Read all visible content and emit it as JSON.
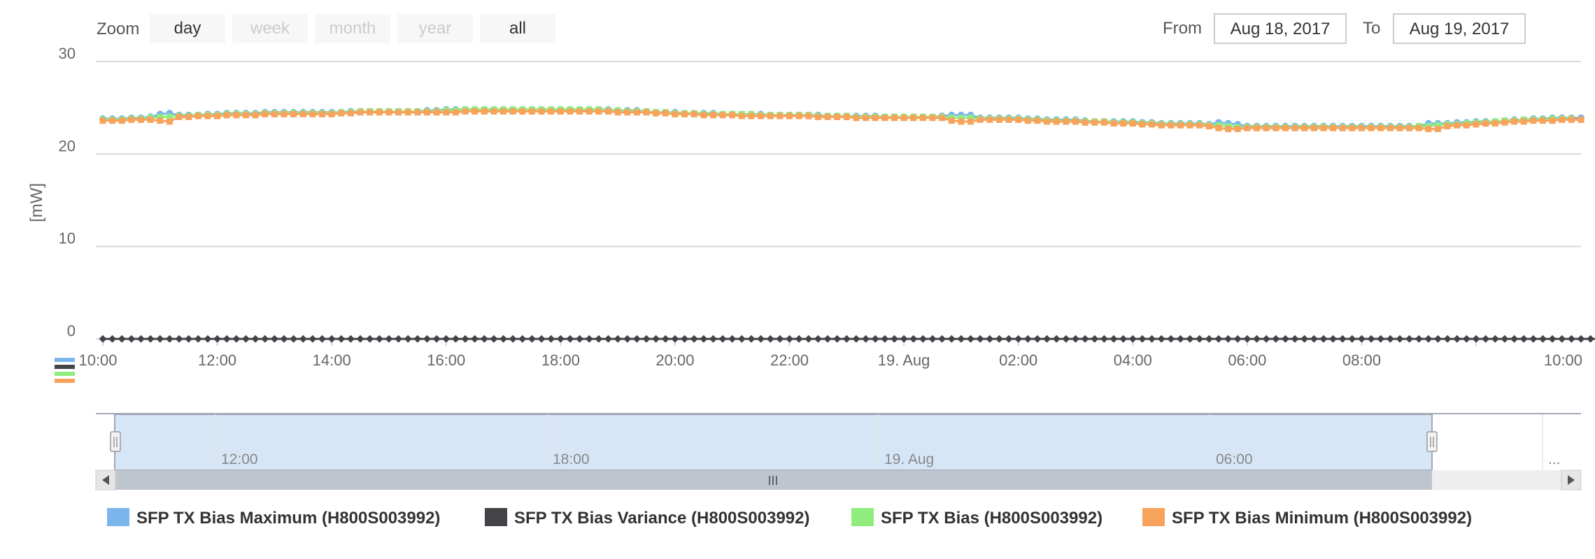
{
  "range_selector": {
    "zoom_label": "Zoom",
    "buttons": [
      {
        "label": "day",
        "state": "normal"
      },
      {
        "label": "week",
        "state": "disabled"
      },
      {
        "label": "month",
        "state": "disabled"
      },
      {
        "label": "year",
        "state": "disabled"
      },
      {
        "label": "all",
        "state": "normal"
      }
    ],
    "from_label": "From",
    "from_value": "Aug 18, 2017",
    "to_label": "To",
    "to_value": "Aug 19, 2017"
  },
  "navigator": {
    "labels": [
      "12:00",
      "18:00",
      "19. Aug",
      "06:00",
      "..."
    ],
    "selected_fraction": [
      0.0,
      0.88
    ],
    "scrollbar_grip": "III"
  },
  "colors": {
    "max": "#7cb5ec",
    "variance": "#434348",
    "bias": "#90ed7d",
    "min": "#f7a35c",
    "navigator_fill": "#d6e6f7",
    "scrollbar": "#bfc5cf"
  },
  "chart_data": {
    "type": "line",
    "title": "",
    "xlabel": "",
    "ylabel": "[mW]",
    "ylim": [
      0,
      30
    ],
    "yticks": [
      "0",
      "10",
      "20",
      "30"
    ],
    "xticks": [
      "10:00",
      "12:00",
      "14:00",
      "16:00",
      "18:00",
      "20:00",
      "22:00",
      "19. Aug",
      "02:00",
      "04:00",
      "06:00",
      "08:00",
      "10:00"
    ],
    "x_start": "2017-08-18 10:00",
    "x_step_minutes": 10,
    "grid": true,
    "legend_position": "bottom",
    "series": [
      {
        "name": "SFP TX Bias Maximum (H800S003992)",
        "marker": "circle",
        "values": [
          23.8,
          23.8,
          23.8,
          23.9,
          23.9,
          24.0,
          24.3,
          24.4,
          24.2,
          24.2,
          24.2,
          24.3,
          24.3,
          24.4,
          24.4,
          24.4,
          24.4,
          24.5,
          24.5,
          24.5,
          24.5,
          24.5,
          24.5,
          24.5,
          24.5,
          24.5,
          24.6,
          24.6,
          24.6,
          24.6,
          24.6,
          24.6,
          24.6,
          24.6,
          24.7,
          24.7,
          24.8,
          24.8,
          24.8,
          24.8,
          24.8,
          24.8,
          24.8,
          24.8,
          24.8,
          24.8,
          24.8,
          24.8,
          24.8,
          24.8,
          24.8,
          24.8,
          24.8,
          24.8,
          24.7,
          24.7,
          24.7,
          24.6,
          24.5,
          24.5,
          24.5,
          24.4,
          24.4,
          24.4,
          24.4,
          24.3,
          24.3,
          24.3,
          24.3,
          24.3,
          24.2,
          24.2,
          24.2,
          24.2,
          24.2,
          24.2,
          24.1,
          24.1,
          24.1,
          24.1,
          24.1,
          24.1,
          24.0,
          24.0,
          24.0,
          24.0,
          24.0,
          24.0,
          24.1,
          24.2,
          24.2,
          24.2,
          23.9,
          23.9,
          23.9,
          23.9,
          23.9,
          23.8,
          23.8,
          23.7,
          23.7,
          23.7,
          23.7,
          23.6,
          23.5,
          23.5,
          23.5,
          23.5,
          23.5,
          23.4,
          23.4,
          23.3,
          23.3,
          23.3,
          23.3,
          23.3,
          23.2,
          23.4,
          23.3,
          23.2,
          23.0,
          23.0,
          23.0,
          23.0,
          23.0,
          23.0,
          23.0,
          23.0,
          23.0,
          23.0,
          23.0,
          23.0,
          23.0,
          23.0,
          23.0,
          23.0,
          23.0,
          23.0,
          23.0,
          23.3,
          23.3,
          23.3,
          23.4,
          23.4,
          23.5,
          23.5,
          23.5,
          23.6,
          23.7,
          23.7,
          23.8,
          23.8,
          23.9,
          23.9,
          23.9,
          23.9
        ]
      },
      {
        "name": "SFP TX Bias Variance (H800S003992)",
        "marker": "diamond",
        "values": [
          0,
          0,
          0,
          0,
          0,
          0,
          0,
          0,
          0,
          0,
          0,
          0,
          0,
          0,
          0,
          0,
          0,
          0,
          0,
          0,
          0,
          0,
          0,
          0,
          0,
          0,
          0,
          0,
          0,
          0,
          0,
          0,
          0,
          0,
          0,
          0,
          0,
          0,
          0,
          0,
          0,
          0,
          0,
          0,
          0,
          0,
          0,
          0,
          0,
          0,
          0,
          0,
          0,
          0,
          0,
          0,
          0,
          0,
          0,
          0,
          0,
          0,
          0,
          0,
          0,
          0,
          0,
          0,
          0,
          0,
          0,
          0,
          0,
          0,
          0,
          0,
          0,
          0,
          0,
          0,
          0,
          0,
          0,
          0,
          0,
          0,
          0,
          0,
          0,
          0,
          0,
          0,
          0,
          0,
          0,
          0,
          0,
          0,
          0,
          0,
          0,
          0,
          0,
          0,
          0,
          0,
          0,
          0,
          0,
          0,
          0,
          0,
          0,
          0,
          0,
          0,
          0,
          0,
          0,
          0,
          0,
          0,
          0,
          0,
          0,
          0,
          0,
          0,
          0,
          0,
          0,
          0,
          0,
          0,
          0,
          0,
          0,
          0,
          0,
          0,
          0,
          0,
          0,
          0,
          0,
          0,
          0,
          0,
          0,
          0,
          0,
          0,
          0,
          0,
          0,
          0,
          0,
          0
        ]
      },
      {
        "name": "SFP TX Bias (H800S003992)",
        "marker": "square",
        "values": [
          23.7,
          23.7,
          23.7,
          23.8,
          23.8,
          23.9,
          24.0,
          24.0,
          24.1,
          24.1,
          24.2,
          24.2,
          24.2,
          24.3,
          24.3,
          24.3,
          24.3,
          24.4,
          24.4,
          24.4,
          24.4,
          24.4,
          24.4,
          24.4,
          24.4,
          24.5,
          24.5,
          24.6,
          24.6,
          24.6,
          24.6,
          24.6,
          24.6,
          24.6,
          24.6,
          24.6,
          24.7,
          24.7,
          24.8,
          24.8,
          24.8,
          24.8,
          24.8,
          24.8,
          24.8,
          24.8,
          24.8,
          24.8,
          24.8,
          24.8,
          24.8,
          24.8,
          24.8,
          24.7,
          24.7,
          24.6,
          24.6,
          24.6,
          24.5,
          24.5,
          24.4,
          24.4,
          24.4,
          24.3,
          24.3,
          24.3,
          24.3,
          24.3,
          24.3,
          24.2,
          24.2,
          24.2,
          24.2,
          24.2,
          24.2,
          24.1,
          24.1,
          24.1,
          24.1,
          24.0,
          24.0,
          24.0,
          24.0,
          24.0,
          24.0,
          24.0,
          24.0,
          24.0,
          24.0,
          23.9,
          23.9,
          23.9,
          23.8,
          23.8,
          23.8,
          23.8,
          23.8,
          23.7,
          23.7,
          23.6,
          23.6,
          23.6,
          23.6,
          23.5,
          23.5,
          23.5,
          23.4,
          23.4,
          23.4,
          23.3,
          23.3,
          23.2,
          23.2,
          23.2,
          23.2,
          23.2,
          23.1,
          23.1,
          23.0,
          22.9,
          22.9,
          22.9,
          22.9,
          22.9,
          22.9,
          22.9,
          22.9,
          22.9,
          22.9,
          22.9,
          22.9,
          22.9,
          22.9,
          22.9,
          22.9,
          22.9,
          22.9,
          22.9,
          23.0,
          23.0,
          23.1,
          23.2,
          23.2,
          23.3,
          23.4,
          23.4,
          23.5,
          23.6,
          23.6,
          23.7,
          23.7,
          23.7,
          23.8,
          23.8,
          23.8
        ]
      },
      {
        "name": "SFP TX Bias Minimum (H800S003992)",
        "marker": "square",
        "values": [
          23.6,
          23.6,
          23.6,
          23.7,
          23.7,
          23.7,
          23.6,
          23.5,
          24.0,
          24.0,
          24.1,
          24.1,
          24.1,
          24.2,
          24.2,
          24.2,
          24.2,
          24.3,
          24.3,
          24.3,
          24.3,
          24.3,
          24.3,
          24.3,
          24.3,
          24.4,
          24.4,
          24.5,
          24.5,
          24.5,
          24.5,
          24.5,
          24.5,
          24.5,
          24.5,
          24.5,
          24.5,
          24.5,
          24.6,
          24.6,
          24.6,
          24.6,
          24.6,
          24.6,
          24.6,
          24.6,
          24.6,
          24.6,
          24.6,
          24.6,
          24.6,
          24.6,
          24.6,
          24.6,
          24.5,
          24.5,
          24.5,
          24.5,
          24.4,
          24.4,
          24.3,
          24.3,
          24.3,
          24.2,
          24.2,
          24.2,
          24.2,
          24.1,
          24.1,
          24.1,
          24.1,
          24.1,
          24.1,
          24.1,
          24.1,
          24.0,
          24.0,
          24.0,
          24.0,
          23.9,
          23.9,
          23.9,
          23.9,
          23.9,
          23.9,
          23.9,
          23.9,
          23.9,
          23.9,
          23.6,
          23.5,
          23.5,
          23.7,
          23.7,
          23.7,
          23.7,
          23.7,
          23.6,
          23.6,
          23.5,
          23.5,
          23.5,
          23.5,
          23.4,
          23.4,
          23.4,
          23.3,
          23.3,
          23.3,
          23.2,
          23.2,
          23.1,
          23.1,
          23.1,
          23.1,
          23.1,
          23.0,
          22.8,
          22.7,
          22.7,
          22.8,
          22.8,
          22.8,
          22.8,
          22.8,
          22.8,
          22.8,
          22.8,
          22.8,
          22.8,
          22.8,
          22.8,
          22.8,
          22.8,
          22.8,
          22.8,
          22.8,
          22.8,
          22.8,
          22.7,
          22.7,
          23.0,
          23.1,
          23.1,
          23.2,
          23.3,
          23.3,
          23.4,
          23.5,
          23.5,
          23.6,
          23.6,
          23.6,
          23.7,
          23.7,
          23.7
        ]
      }
    ]
  }
}
